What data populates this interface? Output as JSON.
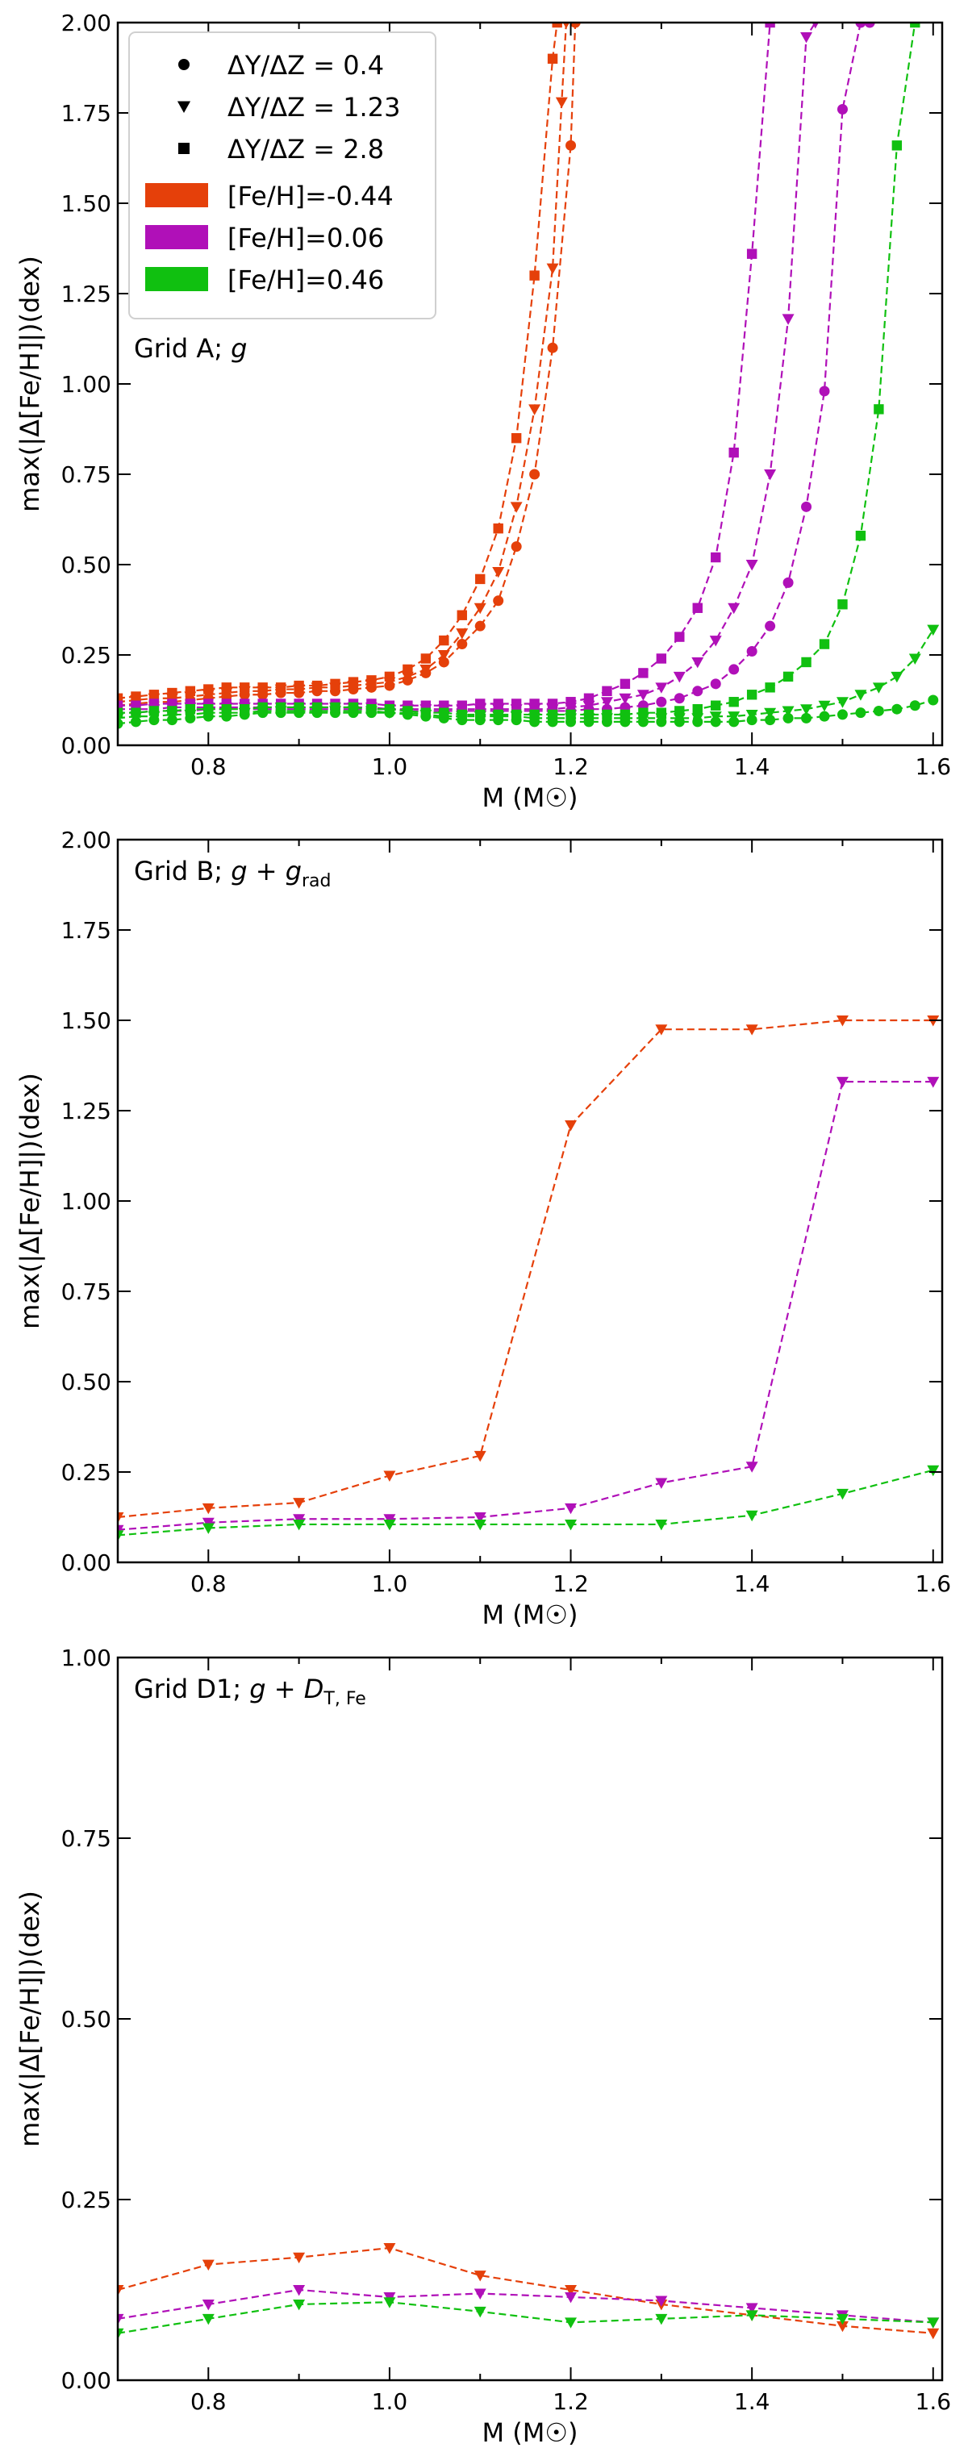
{
  "figure": {
    "panels": [
      "Grid A; g",
      "Grid B; g + g_rad",
      "Grid D1; g + D_T,Fe"
    ]
  },
  "legend": {
    "markers": [
      {
        "symbol": "circle",
        "label": "ΔY/ΔZ = 0.4"
      },
      {
        "symbol": "triangle",
        "label": "ΔY/ΔZ = 1.23"
      },
      {
        "symbol": "square",
        "label": "ΔY/ΔZ = 2.8"
      }
    ],
    "colors": [
      {
        "color": "#e5400a",
        "label": "[Fe/H]=-0.44"
      },
      {
        "color": "#b010b8",
        "label": "[Fe/H]=0.06"
      },
      {
        "color": "#10c010",
        "label": "[Fe/H]=0.46"
      }
    ]
  },
  "chart_data": [
    {
      "type": "line",
      "annotation": "Grid A; g",
      "xlabel": "M (M☉)",
      "ylabel": "max(|Δ[Fe/H]|)(dex)",
      "xlim": [
        0.7,
        1.61
      ],
      "ylim": [
        0,
        2.0
      ],
      "xticks": [
        "0.8",
        "1.0",
        "1.2",
        "1.4",
        "1.6"
      ],
      "yticks": [
        "0.00",
        "0.25",
        "0.50",
        "0.75",
        "1.00",
        "1.25",
        "1.50",
        "1.75",
        "2.00"
      ],
      "grid": false,
      "legend_position": "top-left",
      "series": [
        {
          "name": "[Fe/H]=-0.44, ΔY/ΔZ=0.4",
          "color": "#e5400a",
          "marker": "circle",
          "x": [
            0.7,
            0.72,
            0.74,
            0.76,
            0.78,
            0.8,
            0.82,
            0.84,
            0.86,
            0.88,
            0.9,
            0.92,
            0.94,
            0.96,
            0.98,
            1.0,
            1.02,
            1.04,
            1.06,
            1.08,
            1.1,
            1.12,
            1.14,
            1.16,
            1.18,
            1.2,
            1.205
          ],
          "y": [
            0.11,
            0.115,
            0.12,
            0.12,
            0.125,
            0.13,
            0.135,
            0.14,
            0.14,
            0.145,
            0.145,
            0.15,
            0.15,
            0.155,
            0.16,
            0.165,
            0.18,
            0.2,
            0.23,
            0.28,
            0.33,
            0.4,
            0.55,
            0.75,
            1.1,
            1.66,
            2.0
          ]
        },
        {
          "name": "[Fe/H]=-0.44, ΔY/ΔZ=1.23",
          "color": "#e5400a",
          "marker": "triangle",
          "x": [
            0.7,
            0.72,
            0.74,
            0.76,
            0.78,
            0.8,
            0.82,
            0.84,
            0.86,
            0.88,
            0.9,
            0.92,
            0.94,
            0.96,
            0.98,
            1.0,
            1.02,
            1.04,
            1.06,
            1.08,
            1.1,
            1.12,
            1.14,
            1.16,
            1.18,
            1.19,
            1.195
          ],
          "y": [
            0.12,
            0.125,
            0.13,
            0.13,
            0.135,
            0.14,
            0.145,
            0.15,
            0.15,
            0.155,
            0.155,
            0.16,
            0.16,
            0.165,
            0.17,
            0.175,
            0.19,
            0.21,
            0.25,
            0.31,
            0.38,
            0.48,
            0.66,
            0.93,
            1.32,
            1.78,
            2.0
          ]
        },
        {
          "name": "[Fe/H]=-0.44, ΔY/ΔZ=2.8",
          "color": "#e5400a",
          "marker": "square",
          "x": [
            0.7,
            0.72,
            0.74,
            0.76,
            0.78,
            0.8,
            0.82,
            0.84,
            0.86,
            0.88,
            0.9,
            0.92,
            0.94,
            0.96,
            0.98,
            1.0,
            1.02,
            1.04,
            1.06,
            1.08,
            1.1,
            1.12,
            1.14,
            1.16,
            1.18,
            1.185
          ],
          "y": [
            0.13,
            0.135,
            0.14,
            0.145,
            0.15,
            0.155,
            0.16,
            0.16,
            0.16,
            0.16,
            0.165,
            0.165,
            0.17,
            0.175,
            0.18,
            0.19,
            0.21,
            0.24,
            0.29,
            0.36,
            0.46,
            0.6,
            0.85,
            1.3,
            1.9,
            2.0
          ]
        },
        {
          "name": "[Fe/H]=0.06, ΔY/ΔZ=0.4",
          "color": "#b010b8",
          "marker": "circle",
          "x": [
            0.7,
            0.72,
            0.74,
            0.76,
            0.78,
            0.8,
            0.82,
            0.84,
            0.86,
            0.88,
            0.9,
            0.92,
            0.94,
            0.96,
            0.98,
            1.0,
            1.02,
            1.04,
            1.06,
            1.08,
            1.1,
            1.12,
            1.14,
            1.16,
            1.18,
            1.2,
            1.22,
            1.24,
            1.26,
            1.28,
            1.3,
            1.32,
            1.34,
            1.36,
            1.38,
            1.4,
            1.42,
            1.44,
            1.46,
            1.48,
            1.5,
            1.52,
            1.53
          ],
          "y": [
            0.09,
            0.09,
            0.095,
            0.095,
            0.095,
            0.1,
            0.1,
            0.1,
            0.1,
            0.1,
            0.1,
            0.1,
            0.1,
            0.1,
            0.1,
            0.1,
            0.095,
            0.095,
            0.095,
            0.095,
            0.095,
            0.095,
            0.095,
            0.095,
            0.095,
            0.095,
            0.1,
            0.1,
            0.105,
            0.11,
            0.12,
            0.13,
            0.15,
            0.17,
            0.21,
            0.26,
            0.33,
            0.45,
            0.66,
            0.98,
            1.76,
            2.0,
            2.0
          ]
        },
        {
          "name": "[Fe/H]=0.06, ΔY/ΔZ=1.23",
          "color": "#b010b8",
          "marker": "triangle",
          "x": [
            0.7,
            0.72,
            0.74,
            0.76,
            0.78,
            0.8,
            0.82,
            0.84,
            0.86,
            0.88,
            0.9,
            0.92,
            0.94,
            0.96,
            0.98,
            1.0,
            1.02,
            1.04,
            1.06,
            1.08,
            1.1,
            1.12,
            1.14,
            1.16,
            1.18,
            1.2,
            1.22,
            1.24,
            1.26,
            1.28,
            1.3,
            1.32,
            1.34,
            1.36,
            1.38,
            1.4,
            1.42,
            1.44,
            1.46,
            1.47
          ],
          "y": [
            0.1,
            0.1,
            0.1,
            0.105,
            0.105,
            0.105,
            0.105,
            0.105,
            0.105,
            0.105,
            0.105,
            0.105,
            0.105,
            0.105,
            0.105,
            0.1,
            0.1,
            0.1,
            0.1,
            0.1,
            0.1,
            0.1,
            0.1,
            0.1,
            0.1,
            0.105,
            0.11,
            0.12,
            0.13,
            0.14,
            0.16,
            0.19,
            0.23,
            0.29,
            0.38,
            0.5,
            0.75,
            1.18,
            1.96,
            2.0
          ]
        },
        {
          "name": "[Fe/H]=0.06, ΔY/ΔZ=2.8",
          "color": "#b010b8",
          "marker": "square",
          "x": [
            0.7,
            0.72,
            0.74,
            0.76,
            0.78,
            0.8,
            0.82,
            0.84,
            0.86,
            0.88,
            0.9,
            0.92,
            0.94,
            0.96,
            0.98,
            1.0,
            1.02,
            1.04,
            1.06,
            1.08,
            1.1,
            1.12,
            1.14,
            1.16,
            1.18,
            1.2,
            1.22,
            1.24,
            1.26,
            1.28,
            1.3,
            1.32,
            1.34,
            1.36,
            1.38,
            1.4,
            1.42
          ],
          "y": [
            0.11,
            0.11,
            0.115,
            0.115,
            0.115,
            0.115,
            0.115,
            0.115,
            0.115,
            0.115,
            0.115,
            0.115,
            0.115,
            0.115,
            0.115,
            0.11,
            0.11,
            0.11,
            0.11,
            0.11,
            0.115,
            0.115,
            0.115,
            0.115,
            0.115,
            0.12,
            0.13,
            0.15,
            0.17,
            0.2,
            0.24,
            0.3,
            0.38,
            0.52,
            0.81,
            1.36,
            2.0
          ]
        },
        {
          "name": "[Fe/H]=0.46, ΔY/ΔZ=0.4",
          "color": "#10c010",
          "marker": "circle",
          "x": [
            0.7,
            0.72,
            0.74,
            0.76,
            0.78,
            0.8,
            0.82,
            0.84,
            0.86,
            0.88,
            0.9,
            0.92,
            0.94,
            0.96,
            0.98,
            1.0,
            1.02,
            1.04,
            1.06,
            1.08,
            1.1,
            1.12,
            1.14,
            1.16,
            1.18,
            1.2,
            1.22,
            1.24,
            1.26,
            1.28,
            1.3,
            1.32,
            1.34,
            1.36,
            1.38,
            1.4,
            1.42,
            1.44,
            1.46,
            1.48,
            1.5,
            1.52,
            1.54,
            1.56,
            1.58,
            1.6
          ],
          "y": [
            0.06,
            0.065,
            0.07,
            0.07,
            0.075,
            0.08,
            0.08,
            0.085,
            0.09,
            0.09,
            0.09,
            0.09,
            0.09,
            0.09,
            0.09,
            0.09,
            0.085,
            0.08,
            0.075,
            0.07,
            0.07,
            0.07,
            0.07,
            0.065,
            0.065,
            0.065,
            0.065,
            0.065,
            0.065,
            0.065,
            0.065,
            0.065,
            0.065,
            0.065,
            0.065,
            0.07,
            0.07,
            0.075,
            0.075,
            0.08,
            0.085,
            0.09,
            0.095,
            0.1,
            0.11,
            0.125
          ]
        },
        {
          "name": "[Fe/H]=0.46, ΔY/ΔZ=1.23",
          "color": "#10c010",
          "marker": "triangle",
          "x": [
            0.7,
            0.72,
            0.74,
            0.76,
            0.78,
            0.8,
            0.82,
            0.84,
            0.86,
            0.88,
            0.9,
            0.92,
            0.94,
            0.96,
            0.98,
            1.0,
            1.02,
            1.04,
            1.06,
            1.08,
            1.1,
            1.12,
            1.14,
            1.16,
            1.18,
            1.2,
            1.22,
            1.24,
            1.26,
            1.28,
            1.3,
            1.32,
            1.34,
            1.36,
            1.38,
            1.4,
            1.42,
            1.44,
            1.46,
            1.48,
            1.5,
            1.52,
            1.54,
            1.56,
            1.58,
            1.6
          ],
          "y": [
            0.075,
            0.08,
            0.08,
            0.085,
            0.085,
            0.09,
            0.09,
            0.09,
            0.095,
            0.095,
            0.095,
            0.095,
            0.095,
            0.095,
            0.095,
            0.09,
            0.09,
            0.085,
            0.08,
            0.08,
            0.08,
            0.08,
            0.08,
            0.075,
            0.075,
            0.075,
            0.075,
            0.075,
            0.075,
            0.075,
            0.075,
            0.075,
            0.075,
            0.08,
            0.08,
            0.085,
            0.09,
            0.095,
            0.1,
            0.11,
            0.12,
            0.14,
            0.16,
            0.19,
            0.24,
            0.32
          ]
        },
        {
          "name": "[Fe/H]=0.46, ΔY/ΔZ=2.8",
          "color": "#10c010",
          "marker": "square",
          "x": [
            0.7,
            0.72,
            0.74,
            0.76,
            0.78,
            0.8,
            0.82,
            0.84,
            0.86,
            0.88,
            0.9,
            0.92,
            0.94,
            0.96,
            0.98,
            1.0,
            1.02,
            1.04,
            1.06,
            1.08,
            1.1,
            1.12,
            1.14,
            1.16,
            1.18,
            1.2,
            1.22,
            1.24,
            1.26,
            1.28,
            1.3,
            1.32,
            1.34,
            1.36,
            1.38,
            1.4,
            1.42,
            1.44,
            1.46,
            1.48,
            1.5,
            1.52,
            1.54,
            1.56,
            1.58
          ],
          "y": [
            0.09,
            0.09,
            0.095,
            0.095,
            0.1,
            0.1,
            0.1,
            0.1,
            0.105,
            0.105,
            0.105,
            0.105,
            0.105,
            0.105,
            0.1,
            0.1,
            0.095,
            0.09,
            0.09,
            0.085,
            0.085,
            0.085,
            0.085,
            0.085,
            0.085,
            0.085,
            0.085,
            0.085,
            0.085,
            0.09,
            0.09,
            0.095,
            0.1,
            0.11,
            0.12,
            0.14,
            0.16,
            0.19,
            0.23,
            0.28,
            0.39,
            0.58,
            0.93,
            1.66,
            2.0
          ]
        }
      ]
    },
    {
      "type": "line",
      "annotation": "Grid B; g + g_rad",
      "xlabel": "M (M☉)",
      "ylabel": "max(|Δ[Fe/H]|)(dex)",
      "xlim": [
        0.7,
        1.61
      ],
      "ylim": [
        0,
        2.0
      ],
      "xticks": [
        "0.8",
        "1.0",
        "1.2",
        "1.4",
        "1.6"
      ],
      "yticks": [
        "0.00",
        "0.25",
        "0.50",
        "0.75",
        "1.00",
        "1.25",
        "1.50",
        "1.75",
        "2.00"
      ],
      "grid": false,
      "series": [
        {
          "name": "[Fe/H]=-0.44",
          "color": "#e5400a",
          "marker": "triangle",
          "x": [
            0.7,
            0.8,
            0.9,
            1.0,
            1.1,
            1.2,
            1.3,
            1.4,
            1.5,
            1.6
          ],
          "y": [
            0.125,
            0.15,
            0.165,
            0.24,
            0.295,
            1.21,
            1.475,
            1.475,
            1.5,
            1.5
          ]
        },
        {
          "name": "[Fe/H]=0.06",
          "color": "#b010b8",
          "marker": "triangle",
          "x": [
            0.7,
            0.8,
            0.9,
            1.0,
            1.1,
            1.2,
            1.3,
            1.4,
            1.5,
            1.6
          ],
          "y": [
            0.09,
            0.11,
            0.12,
            0.12,
            0.125,
            0.15,
            0.22,
            0.265,
            1.33,
            1.33
          ]
        },
        {
          "name": "[Fe/H]=0.46",
          "color": "#10c010",
          "marker": "triangle",
          "x": [
            0.7,
            0.8,
            0.9,
            1.0,
            1.1,
            1.2,
            1.3,
            1.4,
            1.5,
            1.6
          ],
          "y": [
            0.075,
            0.095,
            0.105,
            0.105,
            0.105,
            0.105,
            0.105,
            0.13,
            0.19,
            0.255
          ]
        }
      ]
    },
    {
      "type": "line",
      "annotation": "Grid D1; g + D_T,Fe",
      "xlabel": "M (M☉)",
      "ylabel": "max(|Δ[Fe/H]|)(dex)",
      "xlim": [
        0.7,
        1.61
      ],
      "ylim": [
        0,
        1.0
      ],
      "xticks": [
        "0.8",
        "1.0",
        "1.2",
        "1.4",
        "1.6"
      ],
      "yticks": [
        "0.00",
        "0.25",
        "0.50",
        "0.75",
        "1.00"
      ],
      "grid": false,
      "series": [
        {
          "name": "[Fe/H]=-0.44",
          "color": "#e5400a",
          "marker": "triangle",
          "x": [
            0.7,
            0.8,
            0.9,
            1.0,
            1.1,
            1.2,
            1.3,
            1.4,
            1.5,
            1.6
          ],
          "y": [
            0.125,
            0.16,
            0.17,
            0.183,
            0.145,
            0.125,
            0.105,
            0.09,
            0.075,
            0.065
          ]
        },
        {
          "name": "[Fe/H]=0.06",
          "color": "#b010b8",
          "marker": "triangle",
          "x": [
            0.7,
            0.8,
            0.9,
            1.0,
            1.1,
            1.2,
            1.3,
            1.4,
            1.5,
            1.6
          ],
          "y": [
            0.085,
            0.105,
            0.125,
            0.115,
            0.12,
            0.115,
            0.11,
            0.1,
            0.09,
            0.08
          ]
        },
        {
          "name": "[Fe/H]=0.46",
          "color": "#10c010",
          "marker": "triangle",
          "x": [
            0.7,
            0.8,
            0.9,
            1.0,
            1.1,
            1.2,
            1.3,
            1.4,
            1.5,
            1.6
          ],
          "y": [
            0.065,
            0.085,
            0.105,
            0.108,
            0.095,
            0.08,
            0.085,
            0.09,
            0.085,
            0.08
          ]
        }
      ]
    }
  ]
}
